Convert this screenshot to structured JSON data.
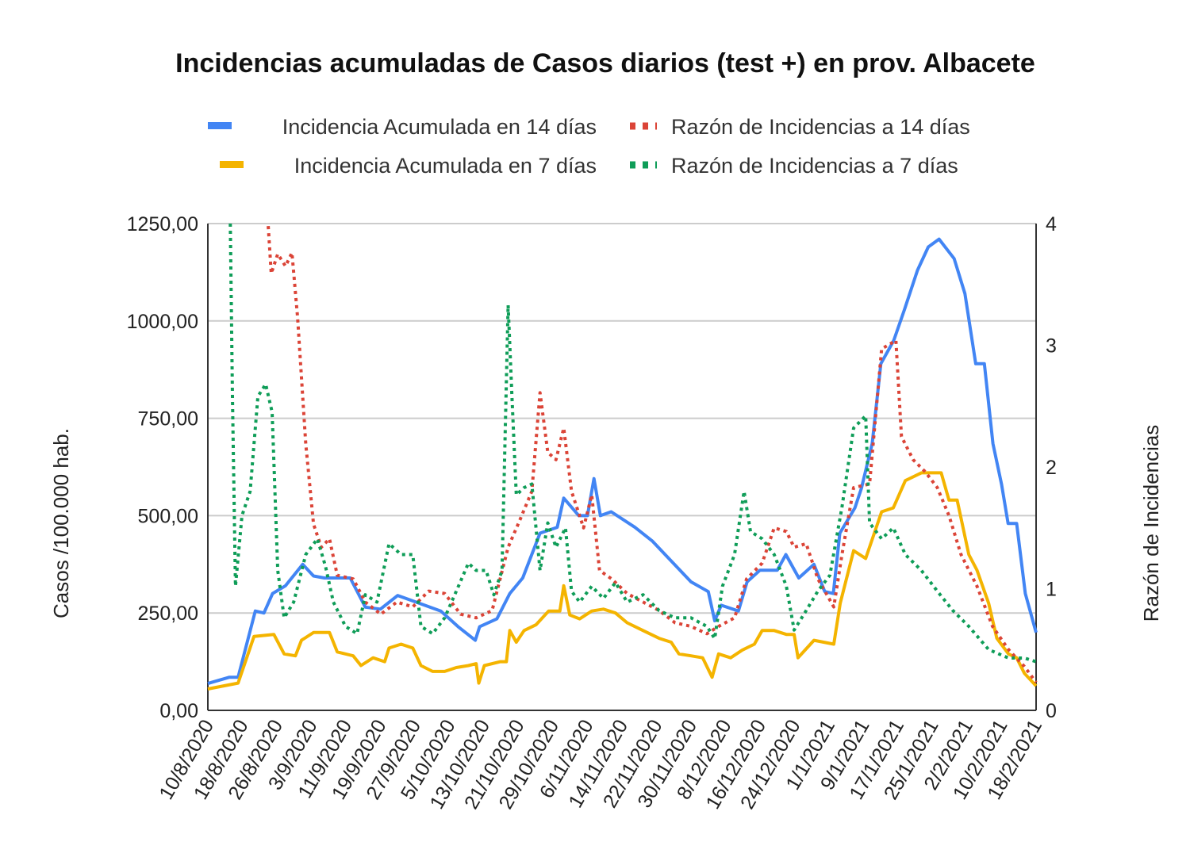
{
  "chart_data": {
    "type": "line",
    "title": "Incidencias acumuladas de Casos diarios (test +) en prov. Albacete",
    "ylabel": "Casos /100.000 hab.",
    "y2label": "Razón de Incidencias",
    "xunit": "days since 10/8/2020",
    "xlim": [
      0,
      192
    ],
    "ylim": [
      0,
      1250
    ],
    "y2lim": [
      0,
      4
    ],
    "yticks": [
      "0,00",
      "250,00",
      "500,00",
      "750,00",
      "1000,00",
      "1250,00"
    ],
    "y2ticks": [
      "0",
      "1",
      "2",
      "3",
      "4"
    ],
    "xticks": [
      "10/8/2020",
      "18/8/2020",
      "26/8/2020",
      "3/9/2020",
      "11/9/2020",
      "19/9/2020",
      "27/9/2020",
      "5/10/2020",
      "13/10/2020",
      "21/10/2020",
      "29/10/2020",
      "6/11/2020",
      "14/11/2020",
      "22/11/2020",
      "30/11/2020",
      "8/12/2020",
      "16/12/2020",
      "24/12/2020",
      "1/1/2021",
      "9/1/2021",
      "17/1/2021",
      "25/1/2021",
      "2/2/2021",
      "10/2/2021",
      "18/2/2021"
    ],
    "grid": true,
    "legend_position": "top",
    "series": [
      {
        "name": "Incidencia Acumulada en 14 días",
        "axis": "left",
        "style": "solid",
        "color": "#4285F4",
        "points": [
          [
            0,
            69
          ],
          [
            5,
            85
          ],
          [
            7,
            85
          ],
          [
            11,
            255
          ],
          [
            13,
            250
          ],
          [
            15,
            300
          ],
          [
            18,
            320
          ],
          [
            22,
            375
          ],
          [
            24.5,
            345
          ],
          [
            27,
            340
          ],
          [
            33,
            340
          ],
          [
            36.5,
            265
          ],
          [
            40,
            260
          ],
          [
            44,
            295
          ],
          [
            49,
            275
          ],
          [
            54,
            255
          ],
          [
            58,
            215
          ],
          [
            62,
            180
          ],
          [
            63,
            215
          ],
          [
            67,
            235
          ],
          [
            70,
            300
          ],
          [
            73,
            340
          ],
          [
            77,
            455
          ],
          [
            81,
            470
          ],
          [
            82.5,
            545
          ],
          [
            86,
            500
          ],
          [
            88,
            500
          ],
          [
            89.5,
            595
          ],
          [
            91,
            500
          ],
          [
            93.5,
            510
          ],
          [
            99,
            470
          ],
          [
            103,
            435
          ],
          [
            106,
            400
          ],
          [
            112,
            330
          ],
          [
            116,
            305
          ],
          [
            117.5,
            230
          ],
          [
            119,
            270
          ],
          [
            123,
            255
          ],
          [
            125,
            330
          ],
          [
            128,
            360
          ],
          [
            132,
            360
          ],
          [
            134,
            400
          ],
          [
            137,
            340
          ],
          [
            140.5,
            375
          ],
          [
            143,
            305
          ],
          [
            145,
            300
          ],
          [
            146.5,
            455
          ],
          [
            150,
            520
          ],
          [
            151.5,
            570
          ],
          [
            154,
            685
          ],
          [
            156,
            890
          ],
          [
            159,
            950
          ],
          [
            161.5,
            1030
          ],
          [
            164.5,
            1130
          ],
          [
            167,
            1190
          ],
          [
            169.5,
            1210
          ],
          [
            173,
            1160
          ],
          [
            175.5,
            1070
          ],
          [
            178,
            890
          ],
          [
            180,
            890
          ],
          [
            182,
            685
          ],
          [
            184,
            580
          ],
          [
            185.5,
            480
          ],
          [
            187.5,
            480
          ],
          [
            189.5,
            300
          ],
          [
            192,
            200
          ]
        ]
      },
      {
        "name": "Incidencia Acumulada en 7 días",
        "axis": "left",
        "style": "solid",
        "color": "#F4B400",
        "points": [
          [
            0,
            55
          ],
          [
            7,
            70
          ],
          [
            10.7,
            190
          ],
          [
            15.3,
            195
          ],
          [
            17.7,
            145
          ],
          [
            20.3,
            140
          ],
          [
            21.7,
            180
          ],
          [
            24.5,
            200
          ],
          [
            28.2,
            200
          ],
          [
            30,
            150
          ],
          [
            33.7,
            140
          ],
          [
            35.5,
            115
          ],
          [
            38.3,
            135
          ],
          [
            41,
            125
          ],
          [
            42,
            160
          ],
          [
            44.8,
            170
          ],
          [
            47.5,
            160
          ],
          [
            49.4,
            115
          ],
          [
            52.1,
            100
          ],
          [
            54.9,
            100
          ],
          [
            57.6,
            110
          ],
          [
            60.4,
            115
          ],
          [
            62.2,
            120
          ],
          [
            62.8,
            70
          ],
          [
            64.1,
            115
          ],
          [
            67.8,
            125
          ],
          [
            69.2,
            125
          ],
          [
            70,
            205
          ],
          [
            71.5,
            175
          ],
          [
            73.3,
            205
          ],
          [
            76.1,
            220
          ],
          [
            79,
            255
          ],
          [
            81.6,
            255
          ],
          [
            82.5,
            320
          ],
          [
            83.9,
            245
          ],
          [
            86.2,
            235
          ],
          [
            89,
            255
          ],
          [
            91.7,
            260
          ],
          [
            94.5,
            250
          ],
          [
            97.2,
            225
          ],
          [
            100.9,
            205
          ],
          [
            104.6,
            185
          ],
          [
            107.4,
            175
          ],
          [
            109.2,
            145
          ],
          [
            112,
            140
          ],
          [
            114.7,
            135
          ],
          [
            116.9,
            85
          ],
          [
            118.4,
            145
          ],
          [
            121.2,
            135
          ],
          [
            123.9,
            155
          ],
          [
            126.7,
            170
          ],
          [
            128.5,
            205
          ],
          [
            131.3,
            205
          ],
          [
            134.1,
            195
          ],
          [
            135.9,
            195
          ],
          [
            136.8,
            135
          ],
          [
            140.5,
            180
          ],
          [
            145.1,
            170
          ],
          [
            146.6,
            275
          ],
          [
            149.7,
            410
          ],
          [
            152.5,
            390
          ],
          [
            156.2,
            510
          ],
          [
            158.9,
            520
          ],
          [
            161.7,
            590
          ],
          [
            165.4,
            610
          ],
          [
            170,
            610
          ],
          [
            171.8,
            540
          ],
          [
            173.7,
            540
          ],
          [
            176.4,
            400
          ],
          [
            178.3,
            360
          ],
          [
            181,
            275
          ],
          [
            182.9,
            185
          ],
          [
            185.6,
            145
          ],
          [
            187.5,
            135
          ],
          [
            189.3,
            95
          ],
          [
            192,
            63
          ]
        ]
      },
      {
        "name": "Razón de Incidencias a 14 días",
        "axis": "right",
        "style": "dotted",
        "color": "#DB4437",
        "points": [
          [
            14,
            3.98
          ],
          [
            14.7,
            3.59
          ],
          [
            16.2,
            3.75
          ],
          [
            18,
            3.65
          ],
          [
            19.5,
            3.76
          ],
          [
            20.8,
            3.23
          ],
          [
            22.7,
            2.19
          ],
          [
            24.5,
            1.53
          ],
          [
            26.3,
            1.34
          ],
          [
            28.2,
            1.41
          ],
          [
            30,
            1.11
          ],
          [
            33.7,
            1.08
          ],
          [
            36.5,
            0.89
          ],
          [
            40.1,
            0.79
          ],
          [
            43.8,
            0.89
          ],
          [
            47.5,
            0.85
          ],
          [
            51.2,
            0.98
          ],
          [
            54.9,
            0.96
          ],
          [
            58.6,
            0.79
          ],
          [
            62.2,
            0.76
          ],
          [
            65.9,
            0.82
          ],
          [
            69.6,
            1.34
          ],
          [
            72.4,
            1.57
          ],
          [
            75.1,
            1.8
          ],
          [
            77,
            2.61
          ],
          [
            78.8,
            2.12
          ],
          [
            80.7,
            2.06
          ],
          [
            82.5,
            2.32
          ],
          [
            84.3,
            1.8
          ],
          [
            87.1,
            1.5
          ],
          [
            89,
            1.77
          ],
          [
            90.8,
            1.15
          ],
          [
            93.6,
            1.08
          ],
          [
            97.2,
            0.96
          ],
          [
            100.9,
            0.89
          ],
          [
            104.6,
            0.82
          ],
          [
            108.3,
            0.72
          ],
          [
            112,
            0.69
          ],
          [
            115.7,
            0.63
          ],
          [
            118.4,
            0.69
          ],
          [
            122.1,
            0.76
          ],
          [
            124.9,
            1.08
          ],
          [
            128.5,
            1.21
          ],
          [
            131.3,
            1.5
          ],
          [
            134.1,
            1.47
          ],
          [
            135.9,
            1.34
          ],
          [
            138.7,
            1.37
          ],
          [
            141.4,
            1.08
          ],
          [
            145.1,
            0.85
          ],
          [
            147,
            1.28
          ],
          [
            149.7,
            1.83
          ],
          [
            153.4,
            1.86
          ],
          [
            156.2,
            2.97
          ],
          [
            159.5,
            3.04
          ],
          [
            160.8,
            2.25
          ],
          [
            163.5,
            2.06
          ],
          [
            166.3,
            1.96
          ],
          [
            169.1,
            1.83
          ],
          [
            171.8,
            1.6
          ],
          [
            174.6,
            1.28
          ],
          [
            178.3,
            1.02
          ],
          [
            181.9,
            0.69
          ],
          [
            185.6,
            0.5
          ],
          [
            189.3,
            0.36
          ],
          [
            192,
            0.23
          ]
        ]
      },
      {
        "name": "Razón de Incidencias a 7 días",
        "axis": "right",
        "style": "dotted",
        "color": "#0F9D58",
        "points": [
          [
            5.2,
            4.0
          ],
          [
            5.7,
            2.58
          ],
          [
            6.4,
            1.02
          ],
          [
            7.9,
            1.6
          ],
          [
            9.8,
            1.8
          ],
          [
            11.6,
            2.58
          ],
          [
            13.4,
            2.68
          ],
          [
            14.9,
            2.45
          ],
          [
            16.2,
            1.15
          ],
          [
            17.7,
            0.76
          ],
          [
            19.9,
            0.89
          ],
          [
            22.7,
            1.28
          ],
          [
            25.4,
            1.41
          ],
          [
            27.3,
            1.18
          ],
          [
            29.1,
            0.89
          ],
          [
            31.9,
            0.69
          ],
          [
            34.6,
            0.63
          ],
          [
            36.5,
            0.95
          ],
          [
            39.2,
            0.89
          ],
          [
            42,
            1.37
          ],
          [
            44.8,
            1.28
          ],
          [
            47.5,
            1.28
          ],
          [
            49.4,
            0.69
          ],
          [
            52.1,
            0.63
          ],
          [
            54.9,
            0.76
          ],
          [
            57.6,
            0.98
          ],
          [
            60.4,
            1.21
          ],
          [
            62.2,
            1.15
          ],
          [
            64.5,
            1.15
          ],
          [
            66.3,
            0.95
          ],
          [
            68.2,
            1.15
          ],
          [
            69.6,
            3.33
          ],
          [
            70.5,
            2.58
          ],
          [
            71.5,
            1.77
          ],
          [
            73.3,
            1.83
          ],
          [
            75.1,
            1.86
          ],
          [
            77,
            1.15
          ],
          [
            78.8,
            1.54
          ],
          [
            80.7,
            1.34
          ],
          [
            82.9,
            1.5
          ],
          [
            84.3,
            0.98
          ],
          [
            86.2,
            0.89
          ],
          [
            89,
            1.02
          ],
          [
            91.7,
            0.92
          ],
          [
            94.5,
            1.05
          ],
          [
            97.2,
            0.89
          ],
          [
            100.9,
            0.95
          ],
          [
            104.6,
            0.82
          ],
          [
            108.3,
            0.76
          ],
          [
            112,
            0.76
          ],
          [
            115.7,
            0.69
          ],
          [
            117.5,
            0.59
          ],
          [
            119.3,
            1.02
          ],
          [
            122.1,
            1.28
          ],
          [
            124.3,
            1.8
          ],
          [
            125.8,
            1.47
          ],
          [
            128.5,
            1.41
          ],
          [
            131.3,
            1.28
          ],
          [
            134.1,
            1.02
          ],
          [
            135.9,
            0.66
          ],
          [
            138.7,
            0.82
          ],
          [
            141.4,
            0.98
          ],
          [
            144.2,
            1.11
          ],
          [
            147,
            1.67
          ],
          [
            149.7,
            2.32
          ],
          [
            152.5,
            2.42
          ],
          [
            153.4,
            1.54
          ],
          [
            156.2,
            1.41
          ],
          [
            158.9,
            1.5
          ],
          [
            161.7,
            1.28
          ],
          [
            165.4,
            1.15
          ],
          [
            169.1,
            0.98
          ],
          [
            172.7,
            0.82
          ],
          [
            176.4,
            0.69
          ],
          [
            181,
            0.5
          ],
          [
            185.6,
            0.43
          ],
          [
            189.3,
            0.43
          ],
          [
            192,
            0.4
          ]
        ]
      }
    ]
  }
}
